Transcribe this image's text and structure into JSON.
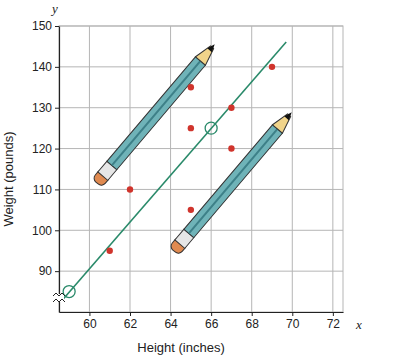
{
  "chart_data": {
    "type": "scatter",
    "x_label": "Height (inches)",
    "y_label": "Weight (pounds)",
    "annotations": [
      "y",
      "x"
    ],
    "xlim": [
      58.5,
      72.5
    ],
    "xticks": [
      60,
      62,
      64,
      66,
      68,
      70,
      72
    ],
    "ylim": [
      80,
      150
    ],
    "yticks": [
      90,
      100,
      110,
      120,
      130,
      140,
      150
    ],
    "grid": true,
    "series": [
      {
        "type": "scatter",
        "marker": "circle",
        "color": "#d0342c",
        "x": [
          61,
          62,
          65,
          65,
          65,
          67,
          67,
          69
        ],
        "values": [
          95,
          110,
          135,
          125,
          105,
          130,
          120,
          140
        ]
      },
      {
        "type": "line",
        "line_style": "solid",
        "color": "#2a8a6a",
        "x": [
          58.7,
          69.7
        ],
        "values": [
          83.1,
          146.1
        ]
      },
      {
        "type": "scatter",
        "marker": "open_circle",
        "color": "#2a8a6a",
        "x": [
          59,
          66
        ],
        "values": [
          85,
          125
        ]
      }
    ]
  }
}
